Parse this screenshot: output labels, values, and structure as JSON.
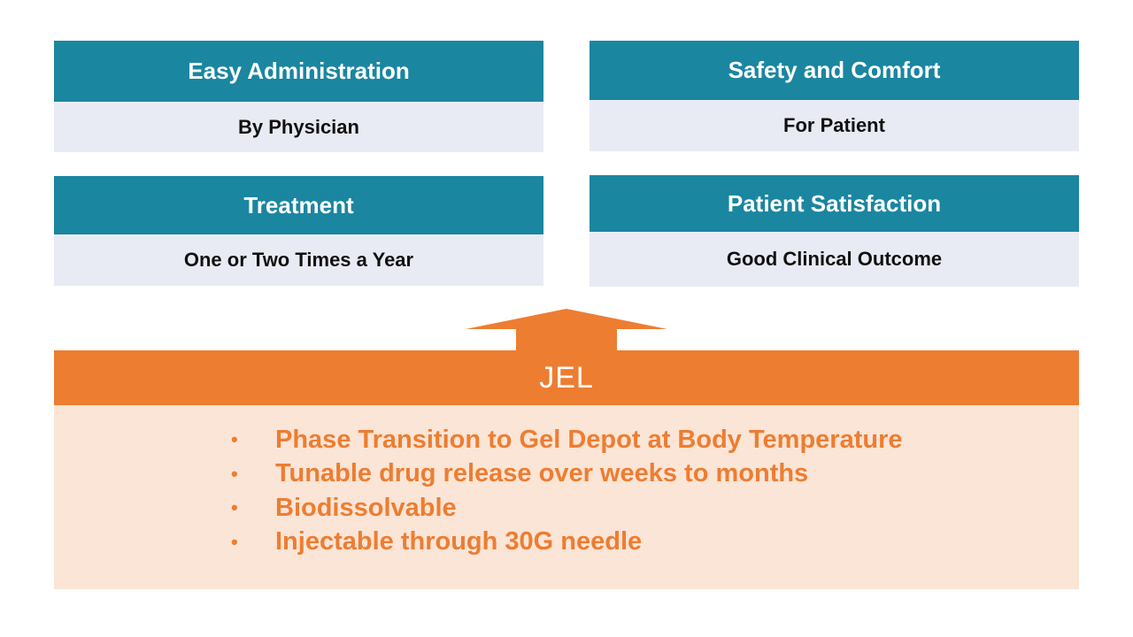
{
  "cards": [
    {
      "title": "Easy Administration",
      "subtitle": "By Physician"
    },
    {
      "title": "Safety and Comfort",
      "subtitle": "For Patient"
    },
    {
      "title": "Treatment",
      "subtitle": "One or Two Times a Year"
    },
    {
      "title": "Patient Satisfaction",
      "subtitle": "Good Clinical Outcome"
    }
  ],
  "platform": {
    "name": "JEL",
    "bullet": "•",
    "features": [
      "Phase Transition to Gel Depot at Body Temperature",
      "Tunable drug release over weeks to months",
      "Biodissolvable",
      "Injectable through 30G needle"
    ]
  },
  "colors": {
    "header_teal": "#1a86a0",
    "card_body": "#e9ebf4",
    "accent_orange": "#ed7d31",
    "panel_peach": "#fbe5d7"
  }
}
